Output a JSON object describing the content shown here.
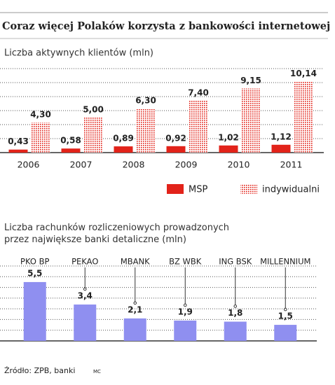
{
  "title": "Coraz więcej Polaków korzysta z bankowości internetowej",
  "chart_data": [
    {
      "type": "bar",
      "title": "Liczba aktywnych klientów (mln)",
      "categories": [
        "2006",
        "2007",
        "2008",
        "2009",
        "2010",
        "2011"
      ],
      "series": [
        {
          "name": "MSP",
          "color": "#e2231a",
          "fill": "solid",
          "values": [
            0.43,
            0.58,
            0.89,
            0.92,
            1.02,
            1.12
          ],
          "value_labels": [
            "0,43",
            "0,58",
            "0,89",
            "0,92",
            "1,02",
            "1,12"
          ]
        },
        {
          "name": "indywidualni",
          "color": "#e2231a",
          "fill": "dotted",
          "values": [
            4.3,
            5.0,
            6.3,
            7.4,
            9.15,
            10.14
          ],
          "value_labels": [
            "4,30",
            "5,00",
            "6,30",
            "7,40",
            "9,15",
            "10,14"
          ]
        }
      ],
      "ylim": [
        0,
        12
      ],
      "yticks": [
        2,
        4,
        6,
        8,
        10,
        12
      ],
      "grid": true,
      "legend": "bottom-right"
    },
    {
      "type": "bar",
      "title": "Liczba rachunków rozliczeniowych prowadzonych przez największe banki detaliczne (mln)",
      "categories": [
        "PKO BP",
        "PEKAO",
        "MBANK",
        "BZ WBK",
        "ING BSK",
        "MILLENNIUM"
      ],
      "values": [
        5.5,
        3.4,
        2.1,
        1.9,
        1.8,
        1.5
      ],
      "value_labels": [
        "5,5",
        "3,4",
        "2,1",
        "1,9",
        "1,8",
        "1,5"
      ],
      "color": "#8f8ff0",
      "ylim": [
        0,
        7
      ],
      "yticks": [
        1,
        2,
        3,
        4,
        5,
        6,
        7
      ],
      "grid": true
    }
  ],
  "source": "Źródło: ZPB, banki",
  "credit": "MC"
}
